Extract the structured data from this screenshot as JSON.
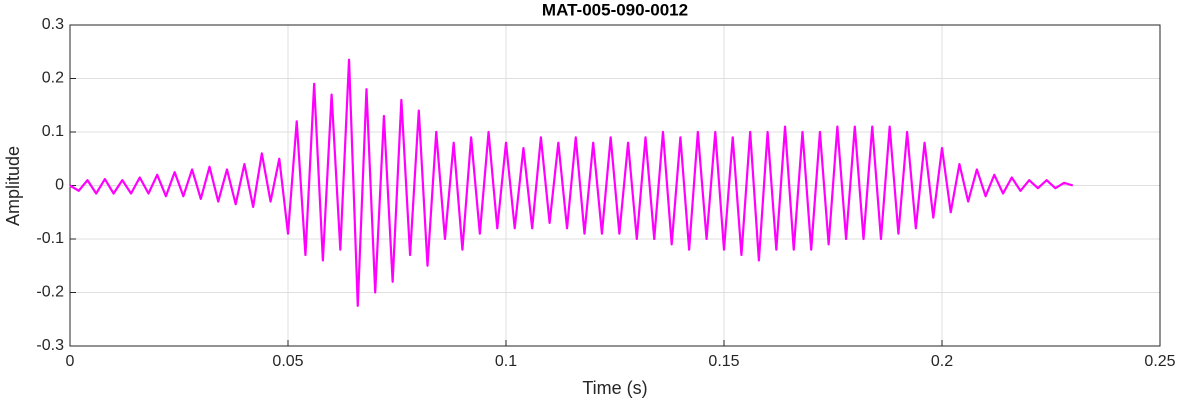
{
  "chart_data": {
    "type": "line",
    "title": "MAT-005-090-0012",
    "x_label": "Time (s)",
    "y_label": "Amplitude",
    "xlim": [
      0,
      0.25
    ],
    "xticks": [
      0,
      0.05,
      0.1,
      0.15,
      0.2,
      0.25
    ],
    "ylim": [
      -0.3,
      0.3
    ],
    "yticks": [
      -0.3,
      -0.2,
      -0.1,
      0,
      0.1,
      0.2,
      0.3
    ],
    "grid": true,
    "x": [
      0,
      0.002,
      0.004,
      0.006,
      0.008,
      0.01,
      0.012,
      0.014,
      0.016,
      0.018,
      0.02,
      0.022,
      0.024,
      0.026,
      0.028,
      0.03,
      0.032,
      0.034,
      0.036,
      0.038,
      0.04,
      0.042,
      0.044,
      0.046,
      0.048,
      0.05,
      0.052,
      0.054,
      0.056,
      0.058,
      0.06,
      0.062,
      0.064,
      0.066,
      0.068,
      0.07,
      0.072,
      0.074,
      0.076,
      0.078,
      0.08,
      0.082,
      0.084,
      0.086,
      0.088,
      0.09,
      0.092,
      0.094,
      0.096,
      0.098,
      0.1,
      0.102,
      0.104,
      0.106,
      0.108,
      0.11,
      0.112,
      0.114,
      0.116,
      0.118,
      0.12,
      0.122,
      0.124,
      0.126,
      0.128,
      0.13,
      0.132,
      0.134,
      0.136,
      0.138,
      0.14,
      0.142,
      0.144,
      0.146,
      0.148,
      0.15,
      0.152,
      0.154,
      0.156,
      0.158,
      0.16,
      0.162,
      0.164,
      0.166,
      0.168,
      0.17,
      0.172,
      0.174,
      0.176,
      0.178,
      0.18,
      0.182,
      0.184,
      0.186,
      0.188,
      0.19,
      0.192,
      0.194,
      0.196,
      0.198,
      0.2,
      0.202,
      0.204,
      0.206,
      0.208,
      0.21,
      0.212,
      0.214,
      0.216,
      0.218,
      0.22,
      0.222,
      0.224,
      0.226,
      0.228,
      0.23
    ],
    "series": [
      {
        "name": "Amplitude",
        "color": "#ff00ff",
        "values": [
          0,
          -0.01,
          0.01,
          -0.015,
          0.012,
          -0.015,
          0.01,
          -0.015,
          0.015,
          -0.015,
          0.02,
          -0.02,
          0.025,
          -0.02,
          0.03,
          -0.025,
          0.035,
          -0.03,
          0.03,
          -0.035,
          0.04,
          -0.04,
          0.06,
          -0.03,
          0.05,
          -0.09,
          0.12,
          -0.13,
          0.19,
          -0.14,
          0.17,
          -0.12,
          0.235,
          -0.225,
          0.18,
          -0.2,
          0.13,
          -0.18,
          0.16,
          -0.13,
          0.14,
          -0.15,
          0.1,
          -0.1,
          0.08,
          -0.12,
          0.09,
          -0.09,
          0.1,
          -0.08,
          0.08,
          -0.08,
          0.07,
          -0.08,
          0.09,
          -0.07,
          0.08,
          -0.08,
          0.09,
          -0.09,
          0.08,
          -0.09,
          0.09,
          -0.09,
          0.08,
          -0.1,
          0.09,
          -0.1,
          0.1,
          -0.11,
          0.09,
          -0.12,
          0.1,
          -0.1,
          0.1,
          -0.12,
          0.09,
          -0.13,
          0.1,
          -0.14,
          0.1,
          -0.12,
          0.11,
          -0.12,
          0.1,
          -0.12,
          0.1,
          -0.11,
          0.11,
          -0.1,
          0.11,
          -0.1,
          0.11,
          -0.1,
          0.11,
          -0.09,
          0.1,
          -0.08,
          0.08,
          -0.06,
          0.07,
          -0.05,
          0.04,
          -0.03,
          0.03,
          -0.02,
          0.02,
          -0.015,
          0.015,
          -0.01,
          0.01,
          -0.005,
          0.01,
          -0.005,
          0.005,
          0
        ]
      }
    ]
  }
}
